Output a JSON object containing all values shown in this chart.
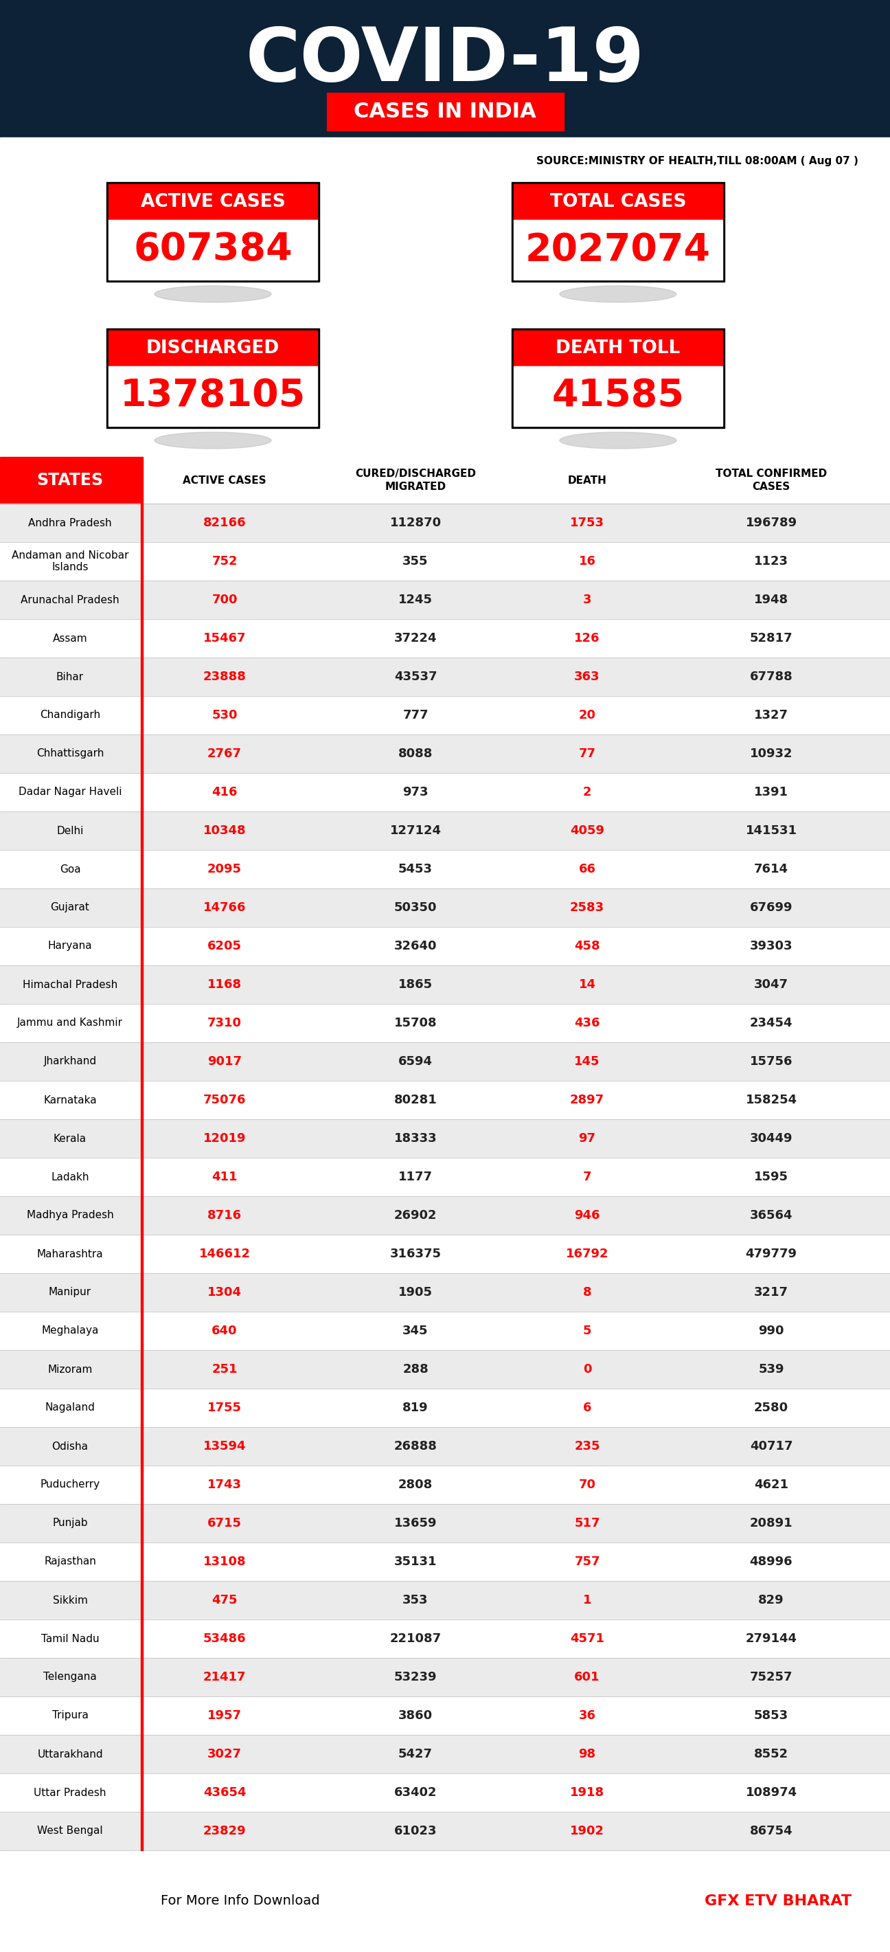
{
  "title": "COVID-19",
  "subtitle": "CASES IN INDIA",
  "source": "SOURCE:MINISTRY OF HEALTH,TILL 08:00AM ( Aug 07 )",
  "bg_header": "#0d2137",
  "bg_body": "#ffffff",
  "active_cases": "607384",
  "total_cases": "2027074",
  "discharged": "1378105",
  "death_toll": "41585",
  "col_headers": [
    "STATES",
    "ACTIVE CASES",
    "CURED/DISCHARGED\nMIGRATED",
    "DEATH",
    "TOTAL CONFIRMED\nCASES"
  ],
  "states": [
    [
      "Andhra Pradesh",
      "82166",
      "112870",
      "1753",
      "196789"
    ],
    [
      "Andaman and Nicobar\nIslands",
      "752",
      "355",
      "16",
      "1123"
    ],
    [
      "Arunachal Pradesh",
      "700",
      "1245",
      "3",
      "1948"
    ],
    [
      "Assam",
      "15467",
      "37224",
      "126",
      "52817"
    ],
    [
      "Bihar",
      "23888",
      "43537",
      "363",
      "67788"
    ],
    [
      "Chandigarh",
      "530",
      "777",
      "20",
      "1327"
    ],
    [
      "Chhattisgarh",
      "2767",
      "8088",
      "77",
      "10932"
    ],
    [
      "Dadar Nagar Haveli",
      "416",
      "973",
      "2",
      "1391"
    ],
    [
      "Delhi",
      "10348",
      "127124",
      "4059",
      "141531"
    ],
    [
      "Goa",
      "2095",
      "5453",
      "66",
      "7614"
    ],
    [
      "Gujarat",
      "14766",
      "50350",
      "2583",
      "67699"
    ],
    [
      "Haryana",
      "6205",
      "32640",
      "458",
      "39303"
    ],
    [
      "Himachal Pradesh",
      "1168",
      "1865",
      "14",
      "3047"
    ],
    [
      "Jammu and Kashmir",
      "7310",
      "15708",
      "436",
      "23454"
    ],
    [
      "Jharkhand",
      "9017",
      "6594",
      "145",
      "15756"
    ],
    [
      "Karnataka",
      "75076",
      "80281",
      "2897",
      "158254"
    ],
    [
      "Kerala",
      "12019",
      "18333",
      "97",
      "30449"
    ],
    [
      "Ladakh",
      "411",
      "1177",
      "7",
      "1595"
    ],
    [
      "Madhya Pradesh",
      "8716",
      "26902",
      "946",
      "36564"
    ],
    [
      "Maharashtra",
      "146612",
      "316375",
      "16792",
      "479779"
    ],
    [
      "Manipur",
      "1304",
      "1905",
      "8",
      "3217"
    ],
    [
      "Meghalaya",
      "640",
      "345",
      "5",
      "990"
    ],
    [
      "Mizoram",
      "251",
      "288",
      "0",
      "539"
    ],
    [
      "Nagaland",
      "1755",
      "819",
      "6",
      "2580"
    ],
    [
      "Odisha",
      "13594",
      "26888",
      "235",
      "40717"
    ],
    [
      "Puducherry",
      "1743",
      "2808",
      "70",
      "4621"
    ],
    [
      "Punjab",
      "6715",
      "13659",
      "517",
      "20891"
    ],
    [
      "Rajasthan",
      "13108",
      "35131",
      "757",
      "48996"
    ],
    [
      "Sikkim",
      "475",
      "353",
      "1",
      "829"
    ],
    [
      "Tamil Nadu",
      "53486",
      "221087",
      "4571",
      "279144"
    ],
    [
      "Telengana",
      "21417",
      "53239",
      "601",
      "75257"
    ],
    [
      "Tripura",
      "1957",
      "3860",
      "36",
      "5853"
    ],
    [
      "Uttarakhand",
      "3027",
      "5427",
      "98",
      "8552"
    ],
    [
      "Uttar Pradesh",
      "43654",
      "63402",
      "1918",
      "108974"
    ],
    [
      "West Bengal",
      "23829",
      "61023",
      "1902",
      "86754"
    ]
  ],
  "footer_text": "For More Info Download",
  "footer_brand": "GFX ETV BHARAT",
  "red": "#ff0000",
  "white": "#ffffff",
  "dark_navy": "#0d2137",
  "black": "#000000",
  "light_gray": "#ebebeb",
  "mid_gray": "#cccccc",
  "shadow_gray": "#c0c0c0"
}
